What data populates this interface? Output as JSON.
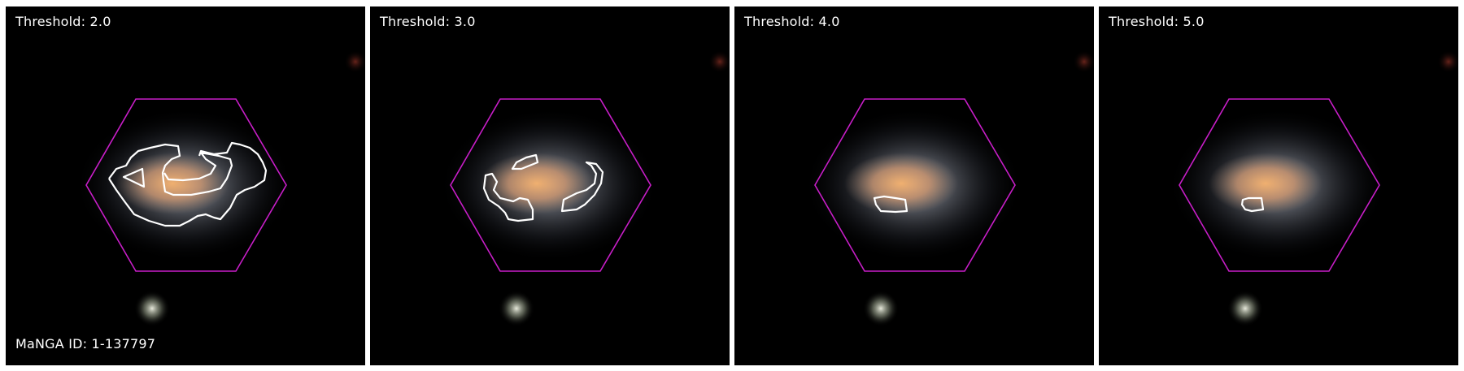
{
  "figure": {
    "galaxy_id_label": "MaNGA ID: 1-137797",
    "hexagon_color": "#c81ec8",
    "contour_color": "#ffffff"
  },
  "panels": [
    {
      "threshold_label": "Threshold: 2.0"
    },
    {
      "threshold_label": "Threshold: 3.0"
    },
    {
      "threshold_label": "Threshold: 4.0"
    },
    {
      "threshold_label": "Threshold: 5.0"
    }
  ]
}
